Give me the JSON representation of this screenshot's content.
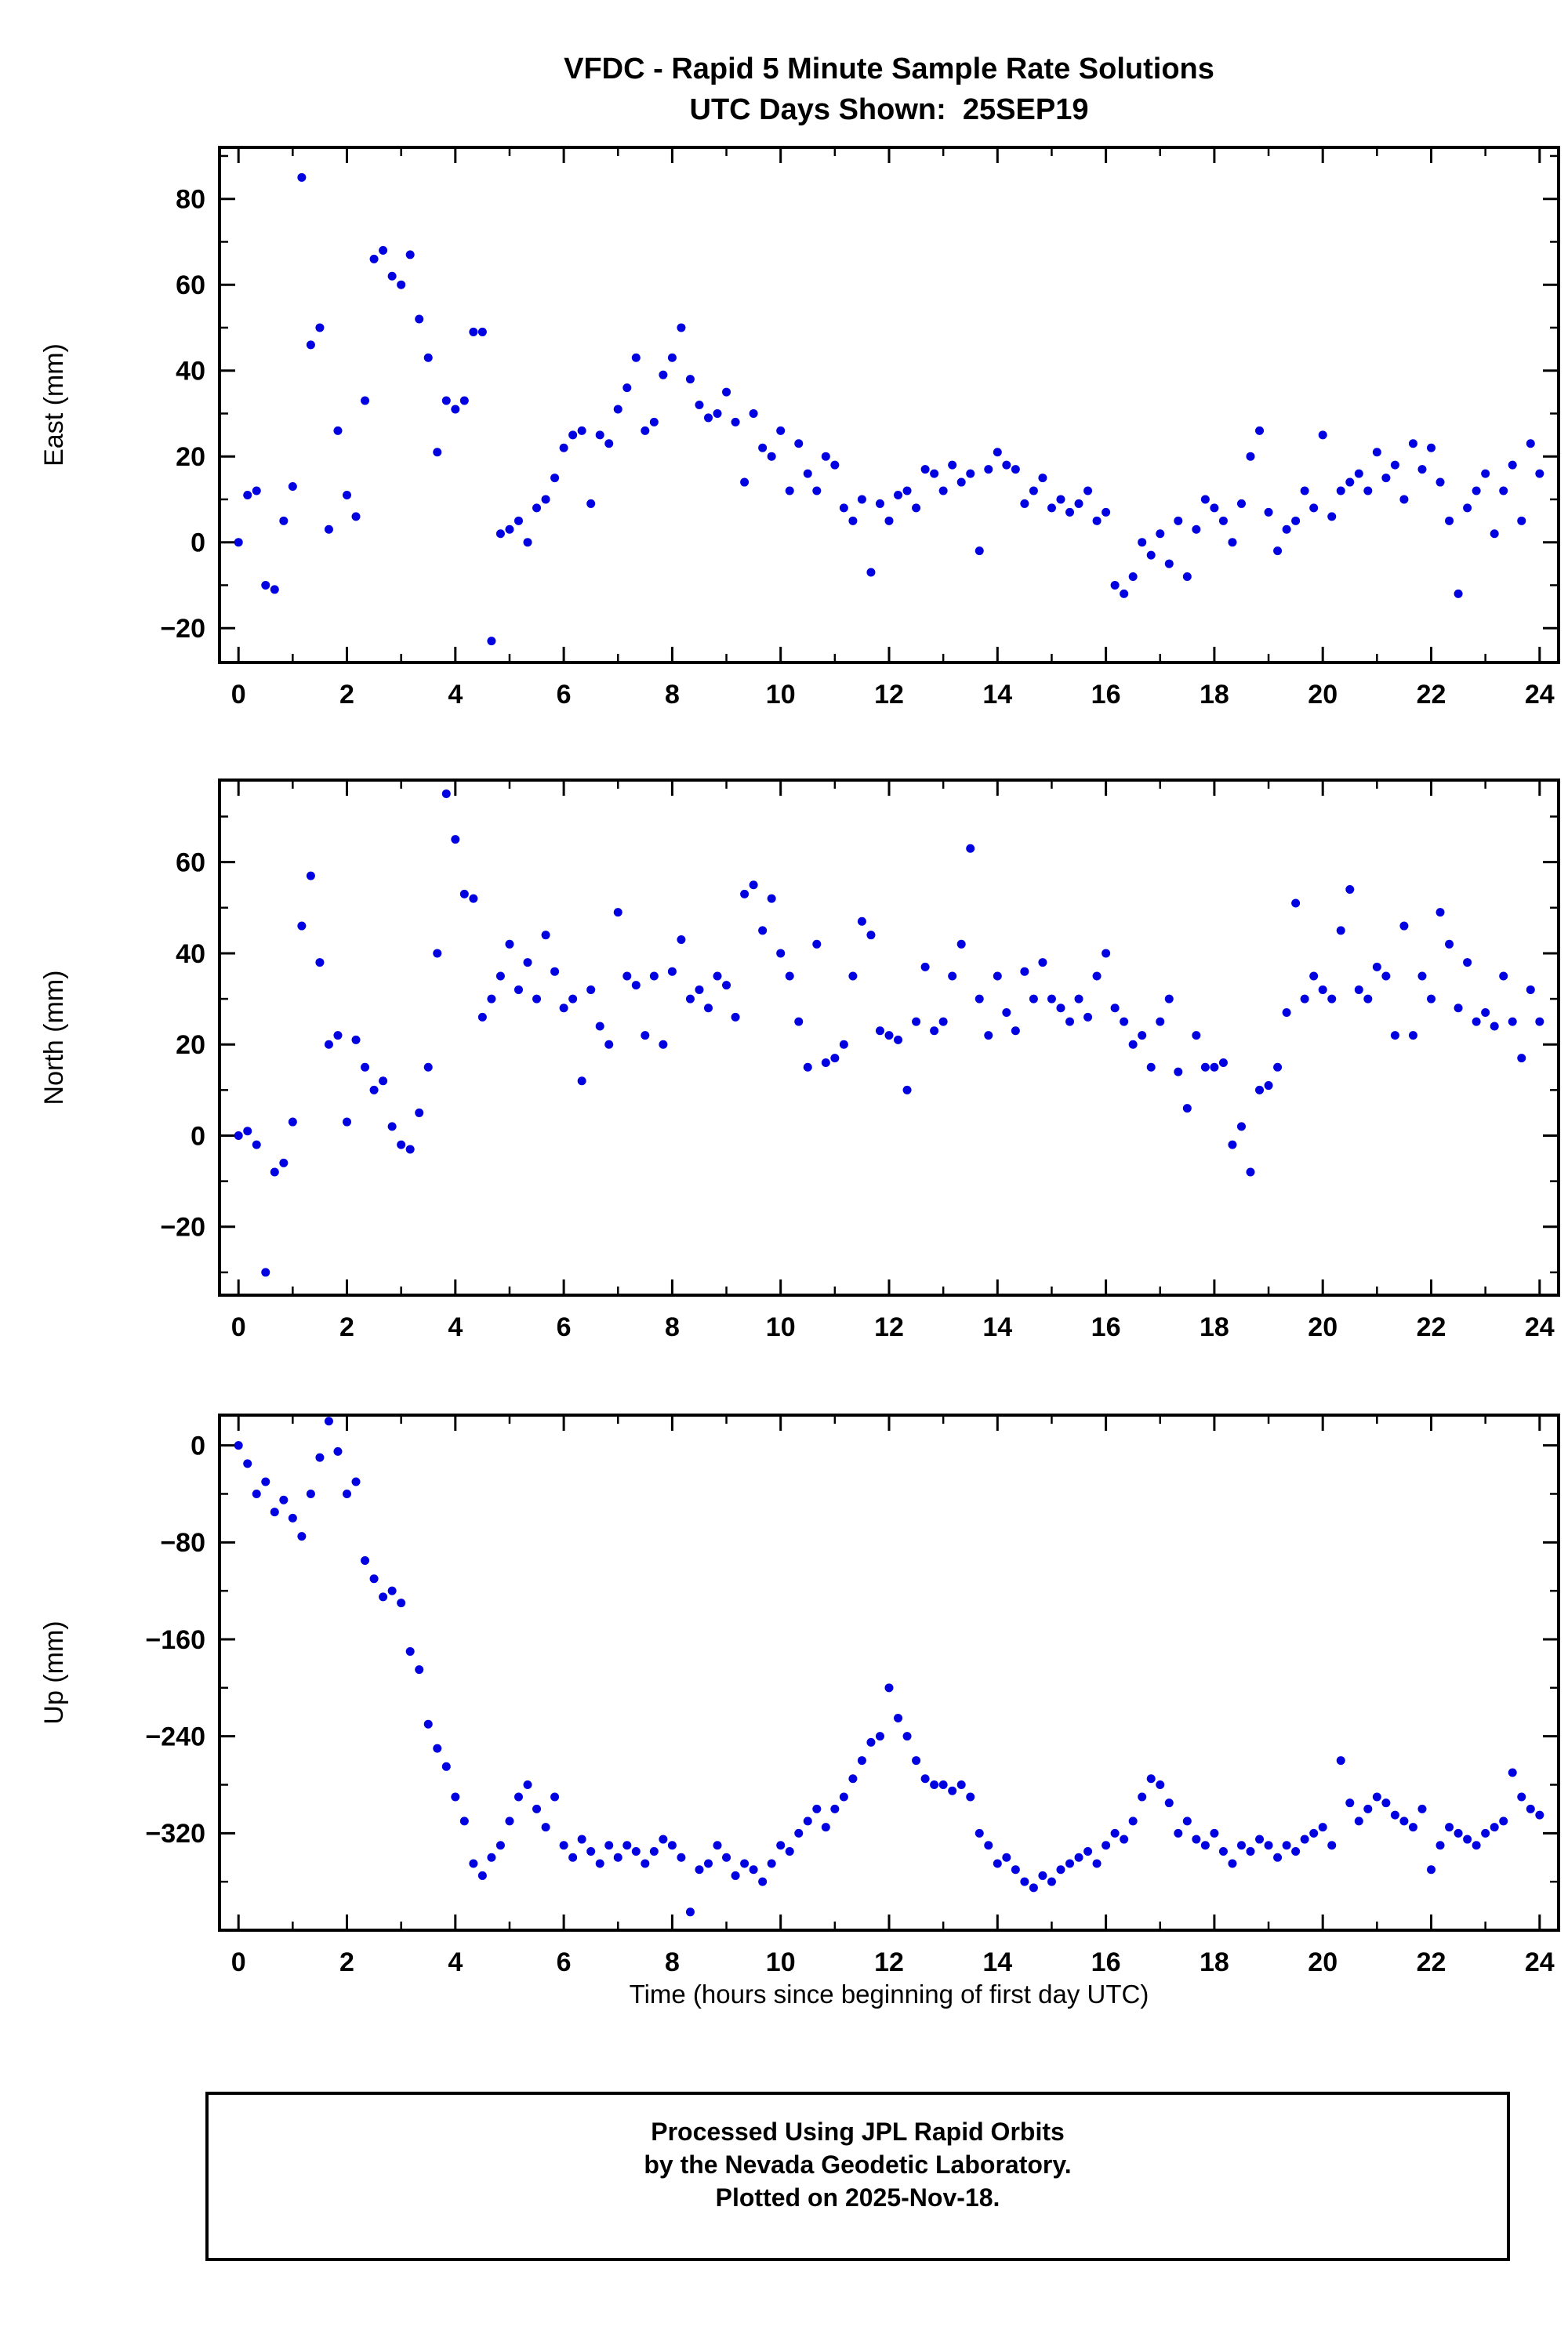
{
  "title": {
    "line1": "VFDC - Rapid 5 Minute Sample Rate Solutions",
    "line2": "UTC Days Shown:  25SEP19"
  },
  "footer": {
    "line1": "Processed Using JPL Rapid Orbits",
    "line2": "by the Nevada Geodetic Laboratory.",
    "line3": "Plotted on 2025-Nov-18."
  },
  "marker_color": "#0000e0",
  "chart_data": {
    "type": "scatter",
    "title": "VFDC - Rapid 5 Minute Sample Rate Solutions",
    "subtitle": "UTC Days Shown:  25SEP19",
    "xlabel": "Time (hours since beginning of first day UTC)",
    "xlim": [
      -0.35,
      24.35
    ],
    "xticks": [
      0,
      2,
      4,
      6,
      8,
      10,
      12,
      14,
      16,
      18,
      20,
      22,
      24
    ],
    "x_minor_step": 1,
    "grid": false,
    "legend": "none",
    "x_sampling": {
      "start": 0,
      "step_hours": 0.166667,
      "unit": "hours"
    },
    "panels": [
      {
        "name": "East",
        "ylabel": "East (mm)",
        "ylim": [
          -28,
          92
        ],
        "yticks": [
          -20,
          0,
          20,
          40,
          60,
          80
        ],
        "y_minor_step": 10,
        "values": [
          0,
          11,
          12,
          -10,
          -11,
          5,
          13,
          85,
          46,
          50,
          3,
          26,
          11,
          6,
          33,
          66,
          68,
          62,
          60,
          67,
          52,
          43,
          21,
          33,
          31,
          33,
          49,
          49,
          -23,
          2,
          3,
          5,
          0,
          8,
          10,
          15,
          22,
          25,
          26,
          9,
          25,
          23,
          31,
          36,
          43,
          26,
          28,
          39,
          43,
          50,
          38,
          32,
          29,
          30,
          35,
          28,
          14,
          30,
          22,
          20,
          26,
          12,
          23,
          16,
          12,
          20,
          18,
          8,
          5,
          10,
          -7,
          9,
          5,
          11,
          12,
          8,
          17,
          16,
          12,
          18,
          14,
          16,
          -2,
          17,
          21,
          18,
          17,
          9,
          12,
          15,
          8,
          10,
          7,
          9,
          12,
          5,
          7,
          -10,
          -12,
          -8,
          0,
          -3,
          2,
          -5,
          5,
          -8,
          3,
          10,
          8,
          5,
          0,
          9,
          20,
          26,
          7,
          -2,
          3,
          5,
          12,
          8,
          25,
          6,
          12,
          14,
          16,
          12,
          21,
          15,
          18,
          10,
          23,
          17,
          22,
          14,
          5,
          -12,
          8,
          12,
          16,
          2,
          12,
          18,
          5,
          23,
          16
        ]
      },
      {
        "name": "North",
        "ylabel": "North (mm)",
        "ylim": [
          -35,
          78
        ],
        "yticks": [
          -20,
          0,
          20,
          40,
          60
        ],
        "y_minor_step": 10,
        "values": [
          0,
          1,
          -2,
          -30,
          -8,
          -6,
          3,
          46,
          57,
          38,
          20,
          22,
          3,
          21,
          15,
          10,
          12,
          2,
          -2,
          -3,
          5,
          15,
          40,
          75,
          65,
          53,
          52,
          26,
          30,
          35,
          42,
          32,
          38,
          30,
          44,
          36,
          28,
          30,
          12,
          32,
          24,
          20,
          49,
          35,
          33,
          22,
          35,
          20,
          36,
          43,
          30,
          32,
          28,
          35,
          33,
          26,
          53,
          55,
          45,
          52,
          40,
          35,
          25,
          15,
          42,
          16,
          17,
          20,
          35,
          47,
          44,
          23,
          22,
          21,
          10,
          25,
          37,
          23,
          25,
          35,
          42,
          63,
          30,
          22,
          35,
          27,
          23,
          36,
          30,
          38,
          30,
          28,
          25,
          30,
          26,
          35,
          40,
          28,
          25,
          20,
          22,
          15,
          25,
          30,
          14,
          6,
          22,
          15,
          15,
          16,
          -2,
          2,
          -8,
          10,
          11,
          15,
          27,
          51,
          30,
          35,
          32,
          30,
          45,
          54,
          32,
          30,
          37,
          35,
          22,
          46,
          22,
          35,
          30,
          49,
          42,
          28,
          38,
          25,
          27,
          24,
          35,
          25,
          17,
          32,
          25
        ]
      },
      {
        "name": "Up",
        "ylabel": "Up (mm)",
        "ylim": [
          -400,
          25
        ],
        "yticks": [
          -320,
          -240,
          -160,
          -80,
          0
        ],
        "y_minor_step": 40,
        "values": [
          0,
          -15,
          -40,
          -30,
          -55,
          -45,
          -60,
          -75,
          -40,
          -10,
          20,
          -5,
          -40,
          -30,
          -95,
          -110,
          -125,
          -120,
          -130,
          -170,
          -185,
          -230,
          -250,
          -265,
          -290,
          -310,
          -345,
          -355,
          -340,
          -330,
          -310,
          -290,
          -280,
          -300,
          -315,
          -290,
          -330,
          -340,
          -325,
          -335,
          -345,
          -330,
          -340,
          -330,
          -335,
          -345,
          -335,
          -325,
          -330,
          -340,
          -385,
          -350,
          -345,
          -330,
          -340,
          -355,
          -345,
          -350,
          -360,
          -345,
          -330,
          -335,
          -320,
          -310,
          -300,
          -315,
          -300,
          -290,
          -275,
          -260,
          -245,
          -240,
          -200,
          -225,
          -240,
          -260,
          -275,
          -280,
          -280,
          -285,
          -280,
          -290,
          -320,
          -330,
          -345,
          -340,
          -350,
          -360,
          -365,
          -355,
          -360,
          -350,
          -345,
          -340,
          -335,
          -345,
          -330,
          -320,
          -325,
          -310,
          -290,
          -275,
          -280,
          -295,
          -320,
          -310,
          -325,
          -330,
          -320,
          -335,
          -345,
          -330,
          -335,
          -325,
          -330,
          -340,
          -330,
          -335,
          -325,
          -320,
          -315,
          -330,
          -260,
          -295,
          -310,
          -300,
          -290,
          -295,
          -305,
          -310,
          -315,
          -300,
          -350,
          -330,
          -315,
          -320,
          -325,
          -330,
          -320,
          -315,
          -310,
          -270,
          -290,
          -300,
          -305
        ]
      }
    ]
  }
}
